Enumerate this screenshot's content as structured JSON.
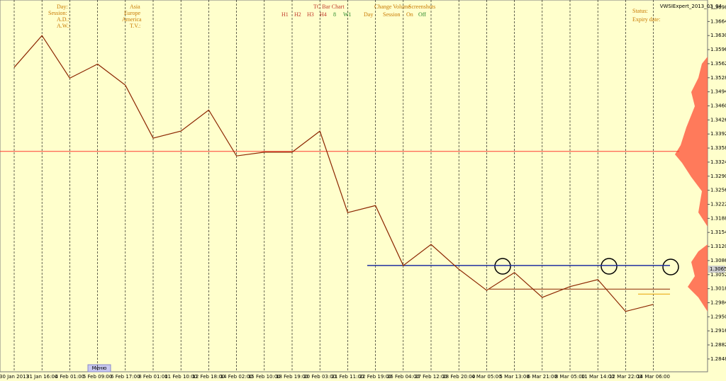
{
  "chart_data": {
    "type": "line",
    "title": "VWSIExpert_2013_03_04",
    "categories": [
      "30 Jan 2013",
      "31 Jan 16:00",
      "4 Feb 01:00",
      "5 Feb 09:00",
      "6 Feb 17:00",
      "8 Feb 01:00",
      "11 Feb 10:00",
      "12 Feb 18:00",
      "14 Feb 02:00",
      "15 Feb 10:00",
      "18 Feb 19:00",
      "20 Feb 03:00",
      "21 Feb 11:00",
      "22 Feb 19:00",
      "26 Feb 04:00",
      "27 Feb 12:00",
      "28 Feb 20:00",
      "4 Mar 05:00",
      "5 Mar 13:00",
      "6 Mar 21:00",
      "8 Mar 05:00",
      "11 Mar 14:00",
      "12 Mar 22:00",
      "14 Mar 06:00"
    ],
    "values": [
      1.3553,
      1.363,
      1.3527,
      1.3561,
      1.351,
      1.3382,
      1.3399,
      1.345,
      1.3339,
      1.3348,
      1.3348,
      1.3399,
      1.3202,
      1.3219,
      1.3074,
      1.3125,
      1.3065,
      1.3014,
      1.3057,
      1.2997,
      1.3023,
      1.304,
      1.2963,
      1.298
    ],
    "color": "#8b2500",
    "ylim": [
      1.2817,
      1.3716
    ],
    "yticks": [
      1.2848,
      1.2882,
      1.2916,
      {
        "value": 1.295,
        "label": "1.2950"
      },
      1.2984,
      1.3018,
      1.3052,
      1.3086,
      {
        "value": 1.312,
        "label": "1.3120"
      },
      1.3154,
      1.3188,
      1.3222,
      1.3256,
      {
        "value": 1.329,
        "label": "1.3290"
      },
      1.3324,
      1.3358,
      1.3392,
      1.3426,
      {
        "value": 1.346,
        "label": "1.3460"
      },
      1.3494,
      1.3528,
      1.3562,
      1.3596,
      {
        "value": 1.363,
        "label": "1.3630"
      },
      1.3664,
      1.3698
    ],
    "grid": true,
    "last_price": 1.3065,
    "levels": [
      {
        "value": 1.335,
        "color": "#ff3b30"
      },
      {
        "value": 1.3074,
        "color": "#1f2fa0"
      },
      {
        "value": 1.3017,
        "color": "#8b2500"
      },
      {
        "value": 1.3005,
        "color": "#e8a000"
      }
    ],
    "annotations": [
      "Day:",
      "Session:",
      "A.D.:",
      "A.W.:",
      "Asia",
      "Europe",
      "America",
      "T.V.:",
      "TC Bar Chart",
      "H1",
      "H2",
      "H3",
      "H4",
      "8",
      "W1",
      "Change Volume",
      "Screenshots",
      "Day",
      "Session",
      "On",
      "Off",
      "Status:",
      "Expiry date:"
    ],
    "button": "Меню"
  }
}
